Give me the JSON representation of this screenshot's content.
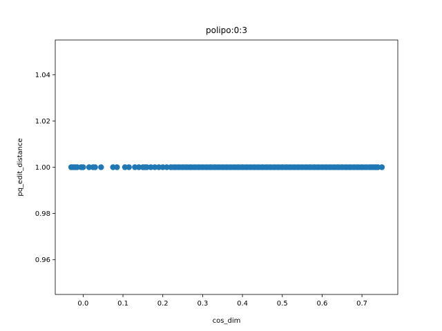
{
  "chart_data": {
    "type": "scatter",
    "title": "polipo:0:3",
    "xlabel": "cos_dim",
    "ylabel": "pq_edit_distance",
    "xlim": [
      -0.07,
      0.79
    ],
    "ylim": [
      0.945,
      1.055
    ],
    "xticks": [
      0.0,
      0.1,
      0.2,
      0.3,
      0.4,
      0.5,
      0.6,
      0.7
    ],
    "xtick_labels": [
      "0.0",
      "0.1",
      "0.2",
      "0.3",
      "0.4",
      "0.5",
      "0.6",
      "0.7"
    ],
    "yticks": [
      0.96,
      0.98,
      1.0,
      1.02,
      1.04
    ],
    "ytick_labels": [
      "0.96",
      "0.98",
      "1.00",
      "1.02",
      "1.04"
    ],
    "grid": false,
    "marker_color": "#1f77b4",
    "series": [
      {
        "y_constant": 1.0,
        "x": [
          -0.03,
          -0.025,
          -0.02,
          -0.015,
          -0.005,
          0.0,
          0.015,
          0.025,
          0.03,
          0.045,
          0.075,
          0.085,
          0.105,
          0.115,
          0.13,
          0.14,
          0.15,
          0.155,
          0.16,
          0.17,
          0.18,
          0.19,
          0.2,
          0.21,
          0.22,
          0.23,
          0.24,
          0.25,
          0.26,
          0.27,
          0.28,
          0.29,
          0.3,
          0.31,
          0.32,
          0.33,
          0.34,
          0.35,
          0.36,
          0.37,
          0.38,
          0.39,
          0.4,
          0.41,
          0.42,
          0.43,
          0.44,
          0.45,
          0.46,
          0.47,
          0.48,
          0.49,
          0.5,
          0.51,
          0.52,
          0.53,
          0.54,
          0.55,
          0.56,
          0.57,
          0.58,
          0.59,
          0.6,
          0.61,
          0.62,
          0.63,
          0.64,
          0.65,
          0.66,
          0.67,
          0.68,
          0.69,
          0.7,
          0.71,
          0.72,
          0.725,
          0.73,
          0.735,
          0.74,
          0.75
        ]
      }
    ]
  }
}
